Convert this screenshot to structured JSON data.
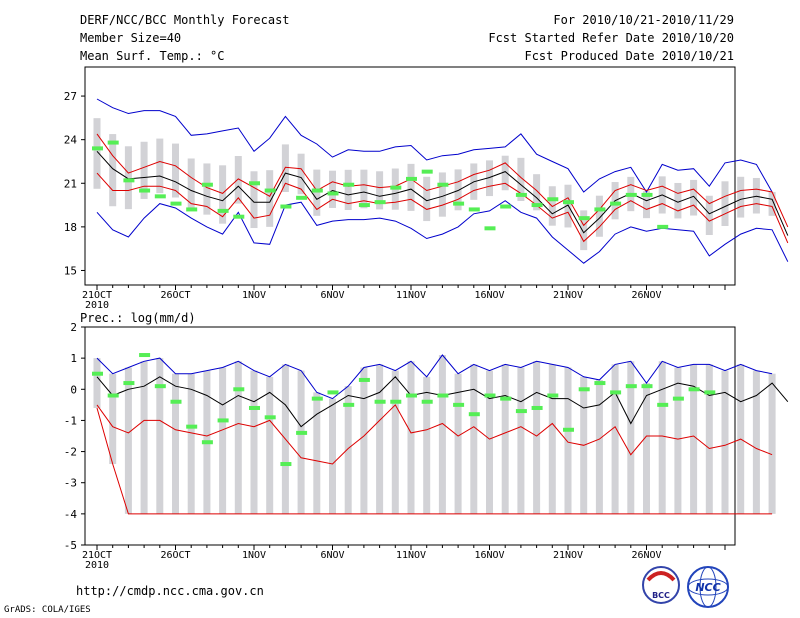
{
  "header": {
    "title": "DERF/NCC/BCC Monthly Forecast",
    "member_size": "Member Size=40",
    "variable": "Mean Surf. Temp.: °C",
    "period": "For 2010/10/21-2010/11/29",
    "started": "Fcst Started Refer Date 2010/10/20",
    "produced": "Fcst Produced Date 2010/10/21"
  },
  "footer": {
    "url": "http://cmdp.ncc.cma.gov.cn",
    "grads": "GrADS: COLA/IGES",
    "logo_bcc": "BCC",
    "logo_ncc": "NCC"
  },
  "colors": {
    "envelope": "#0000cc",
    "spread": "#dd0000",
    "mean": "#000000",
    "obs": "#55ee55",
    "box": "#d2d2d6"
  },
  "chart_data": [
    {
      "type": "line",
      "title": "Mean Surf. Temp.: °C",
      "x_tick_labels": [
        "21OCT",
        "26OCT",
        "1NOV",
        "6NOV",
        "11NOV",
        "16NOV",
        "21NOV",
        "26NOV"
      ],
      "x_year_label": "2010",
      "ylim": [
        14,
        29
      ],
      "y_ticks": [
        15,
        18,
        21,
        24,
        27
      ],
      "days": 40,
      "series": [
        {
          "name": "max",
          "values": [
            26.8,
            26.2,
            25.8,
            26.0,
            26.0,
            25.6,
            24.3,
            24.4,
            24.6,
            24.8,
            23.2,
            24.1,
            25.6,
            24.3,
            23.7,
            22.8,
            23.3,
            23.2,
            23.2,
            23.5,
            23.6,
            22.6,
            22.9,
            23.0,
            23.3,
            23.4,
            23.5,
            24.4,
            23.0,
            22.5,
            22.0,
            20.4,
            21.3,
            21.8,
            22.1,
            20.4,
            22.3,
            21.9,
            22.0,
            20.8,
            22.4,
            22.6,
            22.3,
            20.4
          ]
        },
        {
          "name": "upper",
          "values": [
            24.4,
            22.9,
            21.7,
            22.1,
            22.5,
            22.2,
            21.4,
            20.7,
            20.3,
            21.3,
            20.7,
            20.1,
            22.1,
            22.0,
            20.5,
            21.1,
            20.8,
            20.9,
            20.7,
            20.8,
            21.3,
            20.5,
            20.8,
            21.1,
            21.6,
            21.9,
            22.4,
            21.4,
            20.5,
            19.4,
            20.0,
            18.1,
            19.2,
            20.5,
            20.9,
            20.5,
            20.8,
            20.3,
            20.6,
            19.6,
            20.1,
            20.5,
            20.6,
            20.4,
            18.0
          ]
        },
        {
          "name": "mean",
          "values": [
            23.2,
            22.0,
            21.3,
            21.4,
            21.5,
            21.1,
            20.5,
            20.1,
            19.8,
            20.8,
            19.7,
            19.7,
            21.7,
            21.4,
            19.9,
            20.5,
            20.2,
            20.4,
            20.1,
            20.3,
            20.6,
            19.8,
            20.1,
            20.5,
            21.1,
            21.4,
            21.8,
            20.9,
            20.0,
            18.9,
            19.5,
            17.6,
            18.6,
            19.8,
            20.3,
            19.8,
            20.2,
            19.7,
            20.1,
            18.9,
            19.4,
            19.9,
            20.1,
            19.9,
            17.4
          ]
        },
        {
          "name": "lower",
          "values": [
            21.7,
            20.5,
            20.5,
            20.8,
            20.8,
            20.5,
            19.6,
            19.4,
            18.7,
            20.0,
            18.6,
            18.8,
            21.0,
            20.6,
            19.2,
            19.9,
            19.6,
            19.8,
            19.6,
            19.7,
            19.9,
            19.2,
            19.5,
            19.9,
            20.5,
            20.8,
            21.0,
            20.3,
            19.5,
            18.6,
            19.0,
            17.0,
            18.0,
            19.2,
            19.8,
            19.2,
            19.6,
            19.1,
            19.5,
            18.4,
            18.9,
            19.4,
            19.6,
            19.4,
            16.9
          ]
        },
        {
          "name": "min",
          "values": [
            19.0,
            17.8,
            17.3,
            18.6,
            19.6,
            19.3,
            18.6,
            18.0,
            17.5,
            19.0,
            16.9,
            16.8,
            19.5,
            19.7,
            18.1,
            18.4,
            18.5,
            18.5,
            18.6,
            18.4,
            17.9,
            17.2,
            17.5,
            18.0,
            18.9,
            19.1,
            19.8,
            19.0,
            18.6,
            17.3,
            16.4,
            15.5,
            16.3,
            17.5,
            18.0,
            17.7,
            17.9,
            17.8,
            17.7,
            16.0,
            16.8,
            17.5,
            17.9,
            17.8,
            15.6
          ]
        },
        {
          "name": "obs",
          "values": [
            23.4,
            23.8,
            21.2,
            20.5,
            20.1,
            19.6,
            19.2,
            20.9,
            19.1,
            18.7,
            21.0,
            20.5,
            19.4,
            20.0,
            20.5,
            20.3,
            20.9,
            19.5,
            19.7,
            20.7,
            21.3,
            21.8,
            20.9,
            19.6,
            19.2,
            17.9,
            19.4,
            20.2,
            19.5,
            19.9,
            19.7,
            18.6,
            19.2,
            19.6,
            20.2,
            20.2,
            18.0
          ]
        }
      ]
    },
    {
      "type": "line",
      "title": "Prec.: log(mm/d)",
      "x_tick_labels": [
        "21OCT",
        "26OCT",
        "1NOV",
        "6NOV",
        "11NOV",
        "16NOV",
        "21NOV",
        "26NOV"
      ],
      "x_year_label": "2010",
      "ylim": [
        -5,
        2
      ],
      "y_ticks": [
        -5,
        -4,
        -3,
        -2,
        -1,
        0,
        1,
        2
      ],
      "series": [
        {
          "name": "max",
          "values": [
            1.0,
            0.5,
            0.7,
            0.9,
            1.0,
            0.5,
            0.5,
            0.6,
            0.7,
            0.9,
            0.6,
            0.4,
            0.8,
            0.6,
            -0.1,
            -0.3,
            0.1,
            0.7,
            0.8,
            0.6,
            0.9,
            0.4,
            1.1,
            0.5,
            0.8,
            0.6,
            0.8,
            0.7,
            0.9,
            0.8,
            0.7,
            0.4,
            0.3,
            0.8,
            0.9,
            0.2,
            0.9,
            0.7,
            0.8,
            0.8,
            0.6,
            0.8,
            0.6,
            0.5
          ]
        },
        {
          "name": "mean",
          "values": [
            0.4,
            -0.2,
            0.0,
            0.1,
            0.4,
            0.1,
            0.0,
            -0.2,
            -0.5,
            -0.2,
            -0.4,
            -0.1,
            -0.5,
            -1.2,
            -0.8,
            -0.5,
            -0.2,
            -0.3,
            -0.1,
            0.4,
            -0.2,
            -0.1,
            -0.2,
            -0.1,
            0.0,
            -0.3,
            -0.2,
            -0.4,
            -0.1,
            -0.3,
            -0.3,
            -0.6,
            -0.5,
            -0.1,
            -1.1,
            -0.2,
            0.0,
            0.2,
            0.1,
            -0.2,
            -0.1,
            -0.4,
            -0.2,
            0.2,
            -0.4
          ]
        },
        {
          "name": "min",
          "values": [
            -0.6,
            -2.4,
            -4.0,
            -4.0,
            -4.0,
            -4.0,
            -4.0,
            -4.0,
            -4.0,
            -4.0,
            -4.0,
            -4.0,
            -4.0,
            -4.0,
            -4.0,
            -4.0,
            -4.0,
            -4.0,
            -4.0,
            -4.0,
            -4.0,
            -4.0,
            -4.0,
            -4.0,
            -4.0,
            -4.0,
            -4.0,
            -4.0,
            -4.0,
            -4.0,
            -4.0,
            -4.0,
            -4.0,
            -4.0,
            -4.0,
            -4.0,
            -4.0,
            -4.0,
            -4.0,
            -4.0,
            -4.0,
            -4.0,
            -4.0,
            -4.0
          ]
        },
        {
          "name": "lower",
          "values": [
            -0.5,
            -1.2,
            -1.4,
            -1.0,
            -1.0,
            -1.3,
            -1.4,
            -1.5,
            -1.3,
            -1.1,
            -1.2,
            -1.0,
            -1.6,
            -2.2,
            -2.3,
            -2.4,
            -1.9,
            -1.5,
            -1.0,
            -0.5,
            -1.4,
            -1.3,
            -1.1,
            -1.5,
            -1.2,
            -1.6,
            -1.4,
            -1.2,
            -1.5,
            -1.1,
            -1.7,
            -1.8,
            -1.6,
            -1.2,
            -2.1,
            -1.5,
            -1.5,
            -1.6,
            -1.5,
            -1.9,
            -1.8,
            -1.6,
            -1.9,
            -2.1
          ]
        },
        {
          "name": "obs",
          "values": [
            0.5,
            -0.2,
            0.2,
            1.1,
            0.1,
            -0.4,
            -1.2,
            -1.7,
            -1.0,
            0.0,
            -0.6,
            -0.9,
            -2.4,
            -1.4,
            -0.3,
            -0.1,
            -0.5,
            0.3,
            -0.4,
            -0.4,
            -0.2,
            -0.4,
            -0.2,
            -0.5,
            -0.8,
            -0.2,
            -0.3,
            -0.7,
            -0.6,
            -0.2,
            -1.3,
            0.0,
            0.2,
            -0.1,
            0.1,
            0.1,
            -0.5,
            -0.3,
            0.0,
            -0.1
          ]
        }
      ]
    }
  ]
}
